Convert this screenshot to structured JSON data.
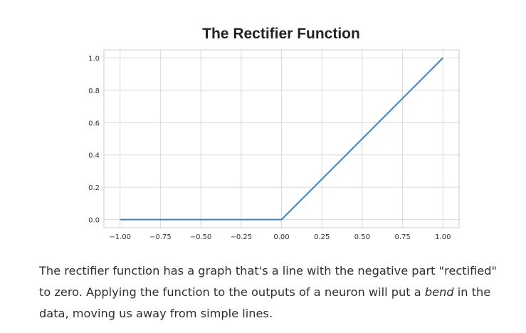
{
  "chart_data": {
    "type": "line",
    "title": "The Rectifier Function",
    "xlabel": "",
    "ylabel": "",
    "xlim": [
      -1.0,
      1.0
    ],
    "ylim": [
      0.0,
      1.0
    ],
    "x_ticks": [
      "−1.00",
      "−0.75",
      "−0.50",
      "−0.25",
      "0.00",
      "0.25",
      "0.50",
      "0.75",
      "1.00"
    ],
    "x_tick_values": [
      -1.0,
      -0.75,
      -0.5,
      -0.25,
      0.0,
      0.25,
      0.5,
      0.75,
      1.0
    ],
    "y_ticks": [
      "0.0",
      "0.2",
      "0.4",
      "0.6",
      "0.8",
      "1.0"
    ],
    "y_tick_values": [
      0.0,
      0.2,
      0.4,
      0.6,
      0.8,
      1.0
    ],
    "grid": true,
    "series": [
      {
        "x": [
          -1.0,
          0.0,
          1.0
        ],
        "y": [
          0.0,
          0.0,
          1.0
        ],
        "color": "#4682b4"
      }
    ]
  },
  "caption": {
    "part1": "The rectifier function has a graph that's a line with the negative part \"rectified\" to zero. Applying the function to the outputs of a neuron will put a ",
    "emphasis": "bend",
    "part2": " in the data, moving us away from simple lines."
  },
  "colors": {
    "line": "#4682b4",
    "grid": "#d9d9d9",
    "text": "#2f2f2f"
  }
}
